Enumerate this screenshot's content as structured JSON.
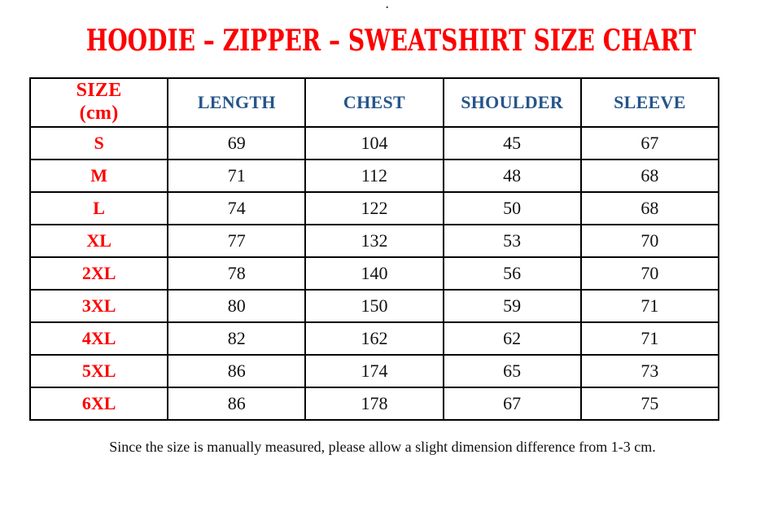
{
  "page": {
    "top_mark": ".",
    "title": "HOODIE – ZIPPER – SWEATSHIRT SIZE CHART",
    "footnote": "Since the size is manually measured, please allow a slight dimension difference from 1-3 cm."
  },
  "colors": {
    "accent_red": "#fe0000",
    "header_blue": "#25558a",
    "body_text": "#111111",
    "border": "#000000"
  },
  "size_chart": {
    "header": {
      "size_column_line1": "SIZE",
      "size_column_line2": "(cm)",
      "measure_columns": [
        "LENGTH",
        "CHEST",
        "SHOULDER",
        "SLEEVE"
      ]
    },
    "rows": [
      {
        "size": "S",
        "length": "69",
        "chest": "104",
        "shoulder": "45",
        "sleeve": "67"
      },
      {
        "size": "M",
        "length": "71",
        "chest": "112",
        "shoulder": "48",
        "sleeve": "68"
      },
      {
        "size": "L",
        "length": "74",
        "chest": "122",
        "shoulder": "50",
        "sleeve": "68"
      },
      {
        "size": "XL",
        "length": "77",
        "chest": "132",
        "shoulder": "53",
        "sleeve": "70"
      },
      {
        "size": "2XL",
        "length": "78",
        "chest": "140",
        "shoulder": "56",
        "sleeve": "70"
      },
      {
        "size": "3XL",
        "length": "80",
        "chest": "150",
        "shoulder": "59",
        "sleeve": "71"
      },
      {
        "size": "4XL",
        "length": "82",
        "chest": "162",
        "shoulder": "62",
        "sleeve": "71"
      },
      {
        "size": "5XL",
        "length": "86",
        "chest": "174",
        "shoulder": "65",
        "sleeve": "73"
      },
      {
        "size": "6XL",
        "length": "86",
        "chest": "178",
        "shoulder": "67",
        "sleeve": "75"
      }
    ]
  }
}
